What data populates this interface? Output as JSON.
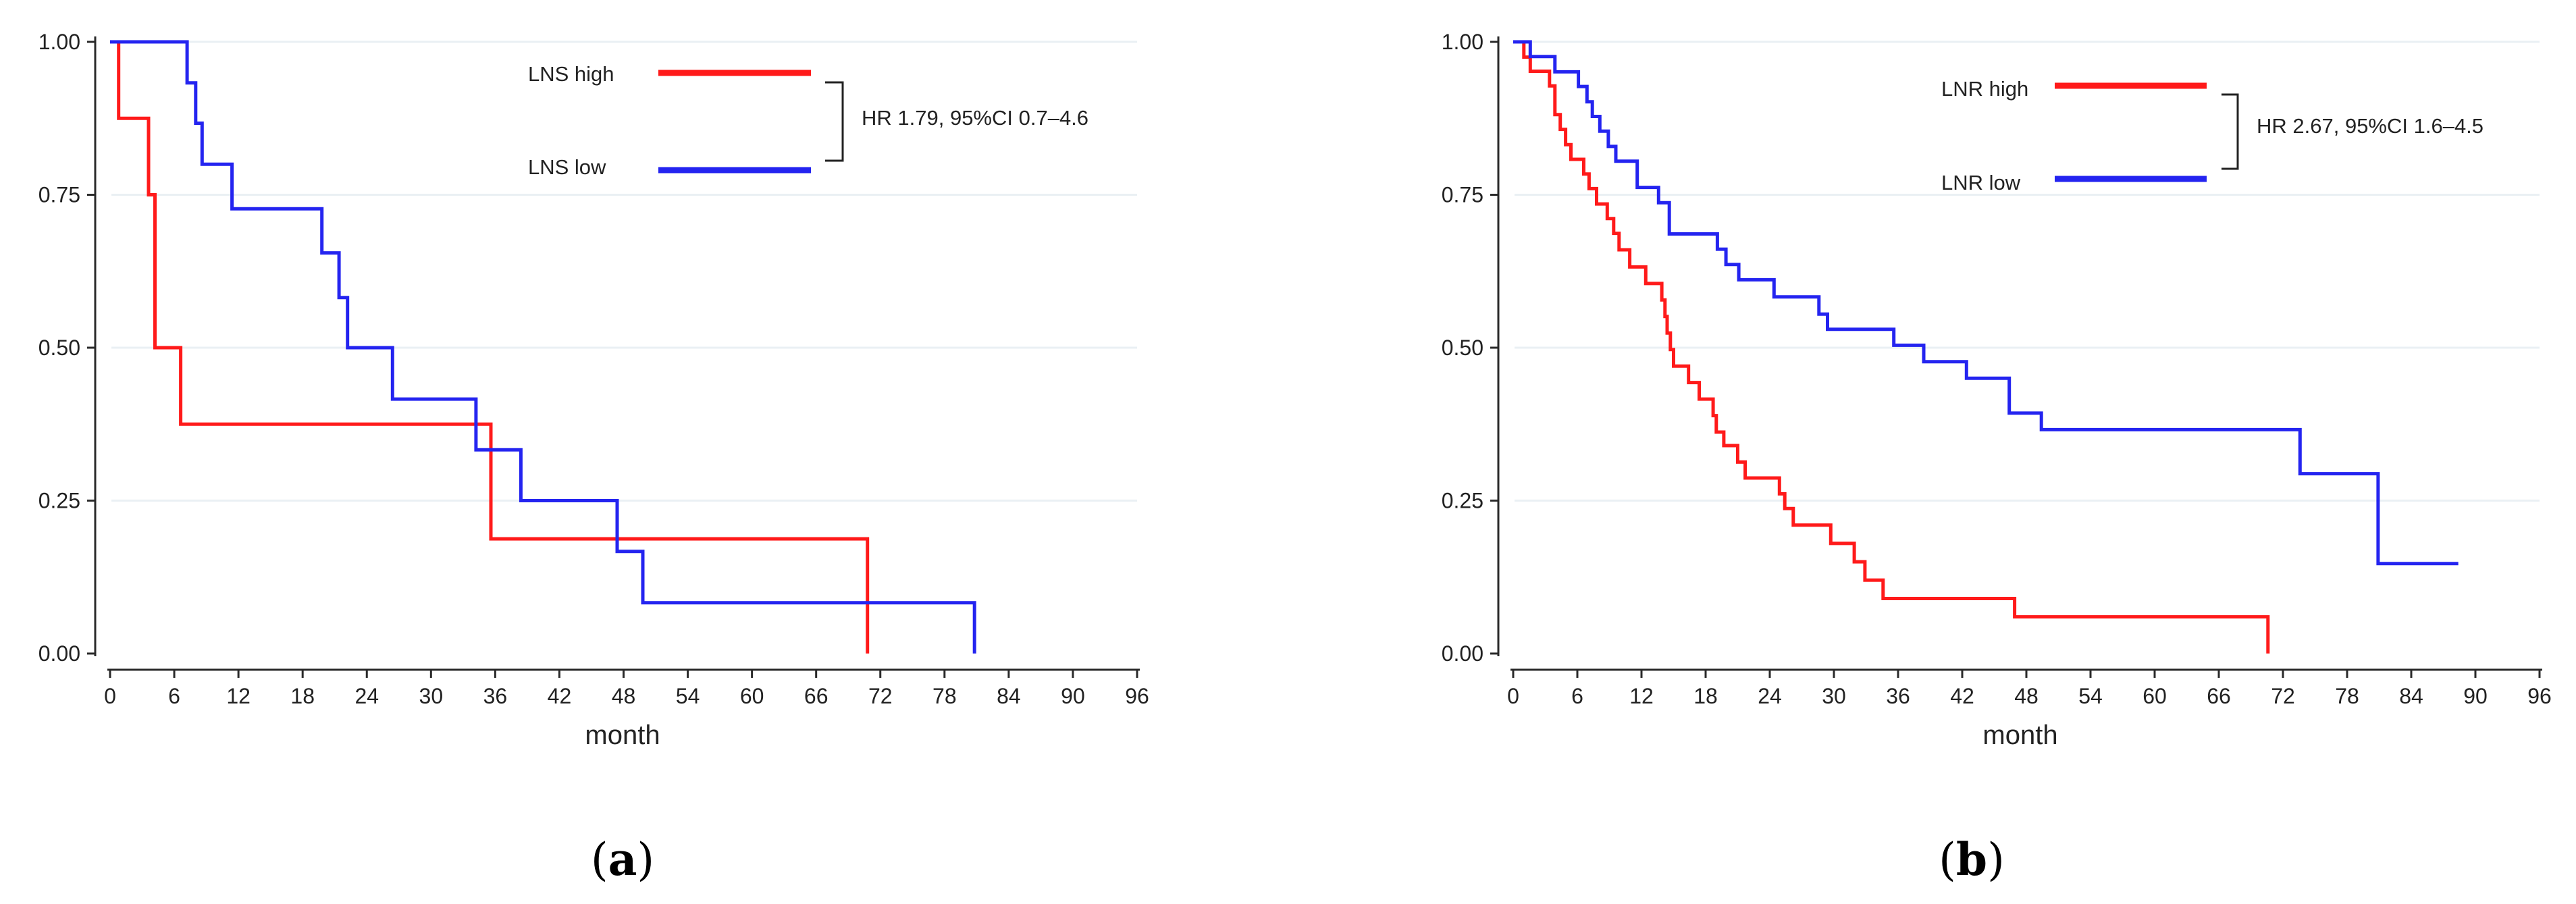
{
  "colors": {
    "high": "#ff1a1a",
    "low": "#2424f0",
    "axis": "#2a2a2a",
    "grid": "#eaf0f4"
  },
  "chart_data": [
    {
      "panel": "a",
      "type": "line",
      "step": true,
      "xlabel": "month",
      "ylabel": "",
      "xlim": [
        0,
        96
      ],
      "ylim": [
        0,
        1
      ],
      "xticks": [
        0,
        6,
        12,
        18,
        24,
        30,
        36,
        42,
        48,
        54,
        60,
        66,
        72,
        78,
        84,
        90,
        96
      ],
      "xtick_labels": [
        "0",
        "6",
        "12",
        "18",
        "24",
        "30",
        "36",
        "42",
        "48",
        "54",
        "60",
        "66",
        "72",
        "78",
        "84",
        "90",
        "96"
      ],
      "yticks": [
        0,
        0.25,
        0.5,
        0.75,
        1
      ],
      "ytick_labels": [
        "0.00",
        "0.25",
        "0.50",
        "0.75",
        "1.00"
      ],
      "grid": true,
      "legend_position": "top-right",
      "annotation": "HR 1.79, 95%CI 0.7–4.6",
      "series": [
        {
          "name": "LNS high",
          "color_key": "high",
          "points": [
            [
              0,
              1.0
            ],
            [
              0.8,
              1.0
            ],
            [
              0.8,
              0.875
            ],
            [
              3.6,
              0.875
            ],
            [
              3.6,
              0.75
            ],
            [
              4.2,
              0.75
            ],
            [
              4.2,
              0.5
            ],
            [
              6.6,
              0.5
            ],
            [
              6.6,
              0.375
            ],
            [
              35.6,
              0.375
            ],
            [
              35.6,
              0.1875
            ],
            [
              70.8,
              0.1875
            ],
            [
              70.8,
              0.0
            ]
          ]
        },
        {
          "name": "LNS low",
          "color_key": "low",
          "points": [
            [
              0,
              1.0
            ],
            [
              7.2,
              1.0
            ],
            [
              7.2,
              0.933
            ],
            [
              8.0,
              0.933
            ],
            [
              8.0,
              0.867
            ],
            [
              8.6,
              0.867
            ],
            [
              8.6,
              0.8
            ],
            [
              11.4,
              0.8
            ],
            [
              11.4,
              0.727
            ],
            [
              19.8,
              0.727
            ],
            [
              19.8,
              0.655
            ],
            [
              21.4,
              0.655
            ],
            [
              21.4,
              0.582
            ],
            [
              22.2,
              0.582
            ],
            [
              22.2,
              0.5
            ],
            [
              26.4,
              0.5
            ],
            [
              26.4,
              0.416
            ],
            [
              34.2,
              0.416
            ],
            [
              34.2,
              0.333
            ],
            [
              38.4,
              0.333
            ],
            [
              38.4,
              0.25
            ],
            [
              47.4,
              0.25
            ],
            [
              47.4,
              0.167
            ],
            [
              49.8,
              0.167
            ],
            [
              49.8,
              0.083
            ],
            [
              80.8,
              0.083
            ],
            [
              80.8,
              0.0
            ]
          ]
        }
      ]
    },
    {
      "panel": "b",
      "type": "line",
      "step": true,
      "xlabel": "month",
      "ylabel": "",
      "xlim": [
        0,
        96
      ],
      "ylim": [
        0,
        1
      ],
      "xticks": [
        0,
        6,
        12,
        18,
        24,
        30,
        36,
        42,
        48,
        54,
        60,
        66,
        72,
        78,
        84,
        90,
        96
      ],
      "xtick_labels": [
        "0",
        "6",
        "12",
        "18",
        "24",
        "30",
        "36",
        "42",
        "48",
        "54",
        "60",
        "66",
        "72",
        "78",
        "84",
        "90",
        "96"
      ],
      "yticks": [
        0,
        0.25,
        0.5,
        0.75,
        1
      ],
      "ytick_labels": [
        "0.00",
        "0.25",
        "0.50",
        "0.75",
        "1.00"
      ],
      "grid": true,
      "legend_position": "top-right",
      "annotation": "HR 2.67, 95%CI 1.6–4.5",
      "series": [
        {
          "name": "LNR high",
          "color_key": "high",
          "points": [
            [
              0,
              1.0
            ],
            [
              1.0,
              1.0
            ],
            [
              1.0,
              0.975
            ],
            [
              1.6,
              0.975
            ],
            [
              1.6,
              0.952
            ],
            [
              3.4,
              0.952
            ],
            [
              3.4,
              0.928
            ],
            [
              3.9,
              0.928
            ],
            [
              3.9,
              0.881
            ],
            [
              4.4,
              0.881
            ],
            [
              4.4,
              0.857
            ],
            [
              4.9,
              0.857
            ],
            [
              4.9,
              0.832
            ],
            [
              5.4,
              0.832
            ],
            [
              5.4,
              0.808
            ],
            [
              6.6,
              0.808
            ],
            [
              6.6,
              0.784
            ],
            [
              7.1,
              0.784
            ],
            [
              7.1,
              0.76
            ],
            [
              7.8,
              0.76
            ],
            [
              7.8,
              0.735
            ],
            [
              8.8,
              0.735
            ],
            [
              8.8,
              0.711
            ],
            [
              9.4,
              0.711
            ],
            [
              9.4,
              0.687
            ],
            [
              9.9,
              0.687
            ],
            [
              9.9,
              0.66
            ],
            [
              10.9,
              0.66
            ],
            [
              10.9,
              0.632
            ],
            [
              12.4,
              0.632
            ],
            [
              12.4,
              0.605
            ],
            [
              13.9,
              0.605
            ],
            [
              13.9,
              0.578
            ],
            [
              14.2,
              0.578
            ],
            [
              14.2,
              0.551
            ],
            [
              14.4,
              0.551
            ],
            [
              14.4,
              0.524
            ],
            [
              14.7,
              0.524
            ],
            [
              14.7,
              0.497
            ],
            [
              15.0,
              0.497
            ],
            [
              15.0,
              0.47
            ],
            [
              16.4,
              0.47
            ],
            [
              16.4,
              0.443
            ],
            [
              17.4,
              0.443
            ],
            [
              17.4,
              0.416
            ],
            [
              18.7,
              0.416
            ],
            [
              18.7,
              0.389
            ],
            [
              19.0,
              0.389
            ],
            [
              19.0,
              0.362
            ],
            [
              19.7,
              0.362
            ],
            [
              19.7,
              0.34
            ],
            [
              21.0,
              0.34
            ],
            [
              21.0,
              0.313
            ],
            [
              21.7,
              0.313
            ],
            [
              21.7,
              0.287
            ],
            [
              24.9,
              0.287
            ],
            [
              24.9,
              0.261
            ],
            [
              25.4,
              0.261
            ],
            [
              25.4,
              0.237
            ],
            [
              26.2,
              0.237
            ],
            [
              26.2,
              0.21
            ],
            [
              29.7,
              0.21
            ],
            [
              29.7,
              0.18
            ],
            [
              31.9,
              0.18
            ],
            [
              31.9,
              0.15
            ],
            [
              32.9,
              0.15
            ],
            [
              32.9,
              0.12
            ],
            [
              34.6,
              0.12
            ],
            [
              34.6,
              0.09
            ],
            [
              46.9,
              0.09
            ],
            [
              46.9,
              0.06
            ],
            [
              70.6,
              0.06
            ],
            [
              70.6,
              0.0
            ]
          ]
        },
        {
          "name": "LNR low",
          "color_key": "low",
          "points": [
            [
              0,
              1.0
            ],
            [
              1.6,
              1.0
            ],
            [
              1.6,
              0.976
            ],
            [
              3.9,
              0.976
            ],
            [
              3.9,
              0.951
            ],
            [
              6.1,
              0.951
            ],
            [
              6.1,
              0.927
            ],
            [
              6.9,
              0.927
            ],
            [
              6.9,
              0.902
            ],
            [
              7.4,
              0.902
            ],
            [
              7.4,
              0.878
            ],
            [
              8.1,
              0.878
            ],
            [
              8.1,
              0.854
            ],
            [
              8.9,
              0.854
            ],
            [
              8.9,
              0.829
            ],
            [
              9.6,
              0.829
            ],
            [
              9.6,
              0.805
            ],
            [
              11.6,
              0.805
            ],
            [
              11.6,
              0.762
            ],
            [
              13.6,
              0.762
            ],
            [
              13.6,
              0.737
            ],
            [
              14.6,
              0.737
            ],
            [
              14.6,
              0.686
            ],
            [
              19.1,
              0.686
            ],
            [
              19.1,
              0.661
            ],
            [
              19.9,
              0.661
            ],
            [
              19.9,
              0.636
            ],
            [
              21.1,
              0.636
            ],
            [
              21.1,
              0.611
            ],
            [
              24.4,
              0.611
            ],
            [
              24.4,
              0.583
            ],
            [
              28.6,
              0.583
            ],
            [
              28.6,
              0.555
            ],
            [
              29.4,
              0.555
            ],
            [
              29.4,
              0.53
            ],
            [
              35.6,
              0.53
            ],
            [
              35.6,
              0.504
            ],
            [
              38.4,
              0.504
            ],
            [
              38.4,
              0.477
            ],
            [
              42.4,
              0.477
            ],
            [
              42.4,
              0.45
            ],
            [
              46.4,
              0.45
            ],
            [
              46.4,
              0.393
            ],
            [
              49.4,
              0.393
            ],
            [
              49.4,
              0.366
            ],
            [
              73.6,
              0.366
            ],
            [
              73.6,
              0.294
            ],
            [
              80.9,
              0.294
            ],
            [
              80.9,
              0.147
            ],
            [
              88.4,
              0.147
            ]
          ]
        }
      ]
    }
  ],
  "panel_labels": [
    {
      "open": "(",
      "letter": "a",
      "close": ")"
    },
    {
      "open": "(",
      "letter": "b",
      "close": ")"
    }
  ]
}
